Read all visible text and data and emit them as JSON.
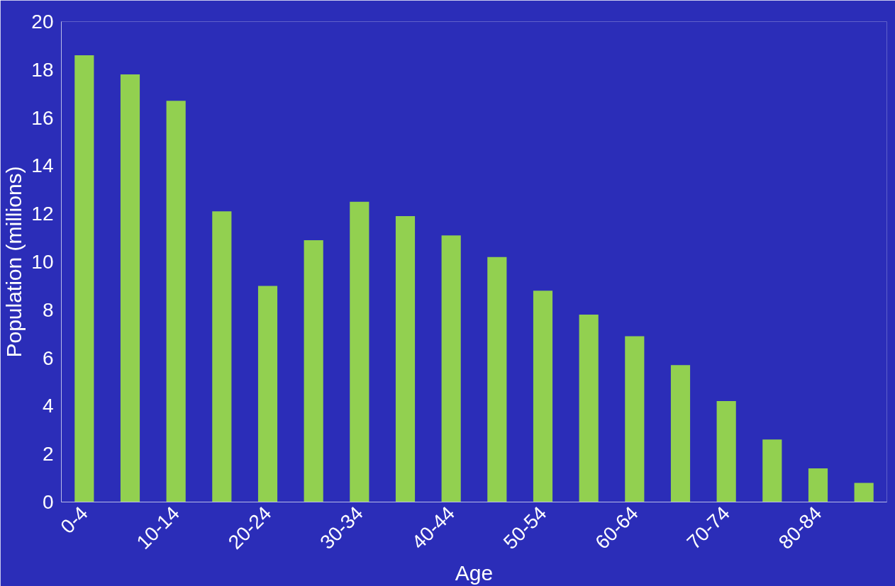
{
  "chart_data": {
    "type": "bar",
    "xlabel": "Age",
    "ylabel": "Population (millions)",
    "categories": [
      "0-4",
      null,
      "10-14",
      null,
      "20-24",
      null,
      "30-34",
      null,
      "40-44",
      null,
      "50-54",
      null,
      "60-64",
      null,
      "70-74",
      null,
      "80-84",
      null
    ],
    "values": [
      18.6,
      17.8,
      16.7,
      12.1,
      9.0,
      10.9,
      12.5,
      11.9,
      11.1,
      10.2,
      8.8,
      7.8,
      6.9,
      5.7,
      4.2,
      2.6,
      1.4,
      0.8
    ],
    "color": "#92d050",
    "ylim": [
      0,
      20
    ],
    "yticks": [
      0,
      2,
      4,
      6,
      8,
      10,
      12,
      14,
      16,
      18,
      20
    ],
    "grid": false
  }
}
